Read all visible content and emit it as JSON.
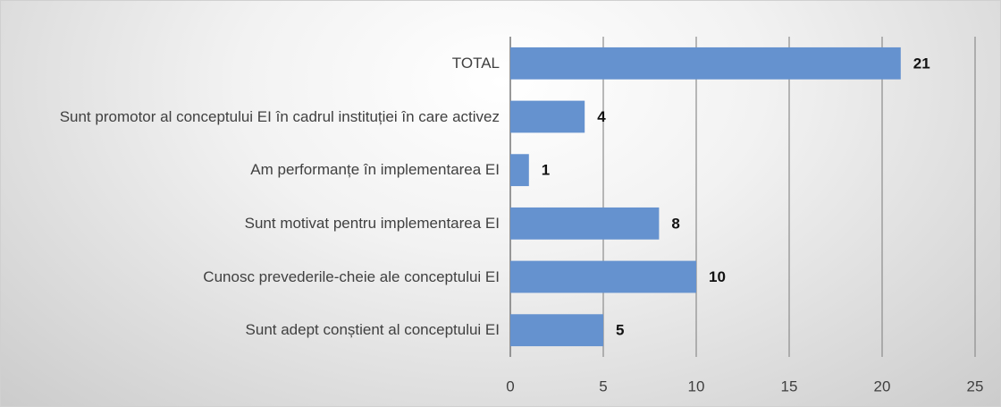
{
  "chart_data": {
    "type": "hbar",
    "categories": [
      "TOTAL",
      "Sunt promotor al conceptului EI în cadrul instituției în care activez",
      "Am performanțe în implementarea EI",
      "Sunt motivat pentru implementarea EI",
      "Cunosc prevederile-cheie ale conceptului EI",
      "Sunt adept conștient al conceptului EI"
    ],
    "values": [
      21,
      4,
      1,
      8,
      10,
      5
    ],
    "color": "#6592cf",
    "xlim": [
      0,
      25
    ],
    "xticks": [
      0,
      5,
      10,
      15,
      20,
      25
    ],
    "grid": true
  }
}
